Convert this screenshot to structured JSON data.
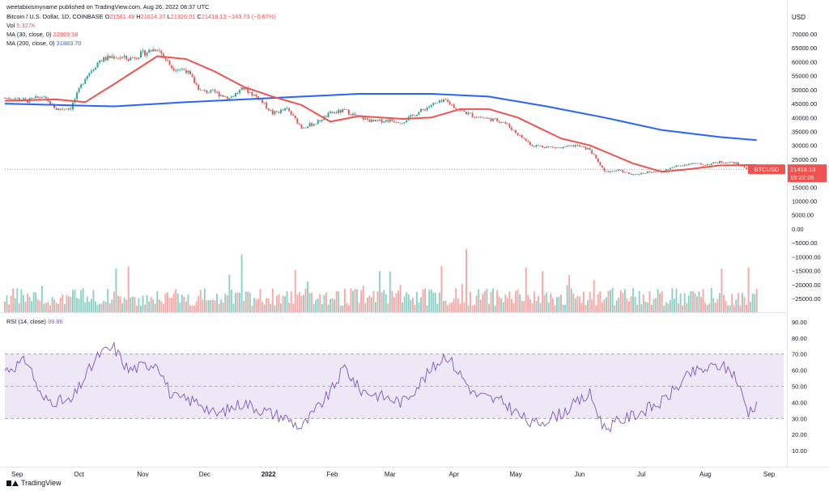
{
  "header": {
    "author_line": "weetabixismyname published on TradingView.com, Aug 26, 2022 08:37 UTC",
    "title": "Bitcoin / U.S. Dollar, 1D, COINBASE",
    "ohlc": {
      "O_label": "O",
      "O": "21561.49",
      "H_label": "H",
      "H": "21614.37",
      "L_label": "L",
      "L": "21326.01",
      "C_label": "C",
      "C": "21418.13",
      "change": "−143.73 (−0.67%)"
    },
    "vol_label": "Vol",
    "vol_value": "5.327K",
    "ma30_label": "MA (30, close, 0)",
    "ma30_value": "22969.58",
    "ma200_label": "MA (200, close, 0)",
    "ma200_value": "31883.70",
    "rsi_label": "RSI (14, close)",
    "rsi_value": "39.86"
  },
  "axis_unit": "USD",
  "price_axis_ticks": [
    "70000.00",
    "65000.00",
    "60000.00",
    "55000.00",
    "50000.00",
    "45000.00",
    "40000.00",
    "35000.00",
    "30000.00",
    "25000.00",
    "20000.00",
    "15000.00",
    "10000.00",
    "5000.00",
    "0.00",
    "−5000.00",
    "−10000.00",
    "−15000.00",
    "−20000.00",
    "−25000.00"
  ],
  "rsi_axis_ticks": [
    "90.00",
    "80.00",
    "70.00",
    "60.00",
    "50.00",
    "40.00",
    "30.00",
    "20.00",
    "10.00"
  ],
  "x_axis_labels": [
    "Sep",
    "Oct",
    "Nov",
    "Dec",
    "2022",
    "Feb",
    "Mar",
    "Apr",
    "May",
    "Jun",
    "Jul",
    "Aug",
    "Sep"
  ],
  "price_tag": {
    "symbol": "BTCUSD",
    "price": "21418.13",
    "countdown": "15:22:28"
  },
  "footer": {
    "brand": "TradingView"
  },
  "colors": {
    "up": "#26a69a",
    "down": "#ef5350",
    "up_vol": "#8ed1c6",
    "down_vol": "#f7a9a7",
    "ma30": "#ef5350",
    "ma200": "#2962ff",
    "rsi": "#7e57c2",
    "rsi_band": "#ede7f6"
  },
  "chart_data": {
    "type": "candlestick",
    "x_start": "2021-08-26",
    "x_end": "2022-08-26",
    "price_ylim": [
      -25000,
      70000
    ],
    "ohlc_weekly_close": [
      [
        "2021-08-30",
        47000
      ],
      [
        "2021-09-06",
        46000
      ],
      [
        "2021-09-13",
        47500
      ],
      [
        "2021-09-20",
        43000
      ],
      [
        "2021-09-27",
        43500
      ],
      [
        "2021-10-04",
        54500
      ],
      [
        "2021-10-11",
        60500
      ],
      [
        "2021-10-18",
        62000
      ],
      [
        "2021-10-25",
        61000
      ],
      [
        "2021-11-01",
        63000
      ],
      [
        "2021-11-08",
        65000
      ],
      [
        "2021-11-15",
        58000
      ],
      [
        "2021-11-22",
        57000
      ],
      [
        "2021-11-29",
        49500
      ],
      [
        "2021-12-06",
        49000
      ],
      [
        "2021-12-13",
        47000
      ],
      [
        "2021-12-20",
        50500
      ],
      [
        "2021-12-27",
        47000
      ],
      [
        "2022-01-03",
        41500
      ],
      [
        "2022-01-10",
        43000
      ],
      [
        "2022-01-17",
        36500
      ],
      [
        "2022-01-24",
        38000
      ],
      [
        "2022-01-31",
        41500
      ],
      [
        "2022-02-07",
        42500
      ],
      [
        "2022-02-14",
        40000
      ],
      [
        "2022-02-21",
        38500
      ],
      [
        "2022-02-28",
        39000
      ],
      [
        "2022-03-07",
        38500
      ],
      [
        "2022-03-14",
        41500
      ],
      [
        "2022-03-21",
        44500
      ],
      [
        "2022-03-28",
        46000
      ],
      [
        "2022-04-04",
        42500
      ],
      [
        "2022-04-11",
        40500
      ],
      [
        "2022-04-18",
        39500
      ],
      [
        "2022-04-25",
        38500
      ],
      [
        "2022-05-02",
        34000
      ],
      [
        "2022-05-09",
        30000
      ],
      [
        "2022-05-16",
        29500
      ],
      [
        "2022-05-23",
        29000
      ],
      [
        "2022-05-30",
        30000
      ],
      [
        "2022-06-06",
        28500
      ],
      [
        "2022-06-13",
        20500
      ],
      [
        "2022-06-20",
        21000
      ],
      [
        "2022-06-27",
        19300
      ],
      [
        "2022-07-04",
        20500
      ],
      [
        "2022-07-11",
        20800
      ],
      [
        "2022-07-18",
        22500
      ],
      [
        "2022-07-25",
        23500
      ],
      [
        "2022-08-01",
        23000
      ],
      [
        "2022-08-08",
        24000
      ],
      [
        "2022-08-15",
        23800
      ],
      [
        "2022-08-22",
        21418
      ]
    ],
    "ma30": [
      [
        "2021-08-26",
        46000
      ],
      [
        "2021-09-20",
        46500
      ],
      [
        "2021-10-04",
        45500
      ],
      [
        "2021-10-18",
        52000
      ],
      [
        "2021-11-08",
        62000
      ],
      [
        "2021-11-22",
        61000
      ],
      [
        "2021-12-06",
        56500
      ],
      [
        "2021-12-20",
        51000
      ],
      [
        "2022-01-03",
        47500
      ],
      [
        "2022-01-17",
        44500
      ],
      [
        "2022-01-31",
        38500
      ],
      [
        "2022-02-14",
        40500
      ],
      [
        "2022-03-07",
        39500
      ],
      [
        "2022-03-21",
        40000
      ],
      [
        "2022-04-04",
        43000
      ],
      [
        "2022-04-18",
        43000
      ],
      [
        "2022-05-02",
        40000
      ],
      [
        "2022-05-23",
        32500
      ],
      [
        "2022-06-06",
        30000
      ],
      [
        "2022-06-27",
        23500
      ],
      [
        "2022-07-11",
        20500
      ],
      [
        "2022-07-25",
        21500
      ],
      [
        "2022-08-08",
        22800
      ],
      [
        "2022-08-26",
        22970
      ]
    ],
    "ma200": [
      [
        "2021-08-26",
        45000
      ],
      [
        "2021-09-20",
        44500
      ],
      [
        "2021-10-18",
        44000
      ],
      [
        "2021-11-22",
        45500
      ],
      [
        "2021-12-20",
        46500
      ],
      [
        "2022-01-17",
        47500
      ],
      [
        "2022-02-14",
        48500
      ],
      [
        "2022-03-21",
        48500
      ],
      [
        "2022-04-18",
        47500
      ],
      [
        "2022-05-16",
        44000
      ],
      [
        "2022-06-13",
        40000
      ],
      [
        "2022-07-11",
        35500
      ],
      [
        "2022-08-08",
        33000
      ],
      [
        "2022-08-26",
        31884
      ]
    ],
    "rsi_ylim": [
      0,
      100
    ],
    "rsi_bands": [
      30,
      70
    ],
    "rsi": [
      [
        "2021-08-26",
        60
      ],
      [
        "2021-09-06",
        66
      ],
      [
        "2021-09-13",
        42
      ],
      [
        "2021-09-27",
        40
      ],
      [
        "2021-10-04",
        56
      ],
      [
        "2021-10-11",
        70
      ],
      [
        "2021-10-18",
        74
      ],
      [
        "2021-10-25",
        60
      ],
      [
        "2021-11-08",
        65
      ],
      [
        "2021-11-15",
        43
      ],
      [
        "2021-11-29",
        40
      ],
      [
        "2021-12-06",
        32
      ],
      [
        "2021-12-20",
        40
      ],
      [
        "2021-12-27",
        36
      ],
      [
        "2022-01-10",
        30
      ],
      [
        "2022-01-17",
        24
      ],
      [
        "2022-01-31",
        46
      ],
      [
        "2022-02-07",
        62
      ],
      [
        "2022-02-14",
        48
      ],
      [
        "2022-03-07",
        40
      ],
      [
        "2022-03-21",
        60
      ],
      [
        "2022-03-28",
        70
      ],
      [
        "2022-04-11",
        45
      ],
      [
        "2022-04-25",
        40
      ],
      [
        "2022-05-09",
        26
      ],
      [
        "2022-05-23",
        33
      ],
      [
        "2022-06-06",
        45
      ],
      [
        "2022-06-13",
        24
      ],
      [
        "2022-06-27",
        32
      ],
      [
        "2022-07-11",
        40
      ],
      [
        "2022-07-25",
        58
      ],
      [
        "2022-08-08",
        63
      ],
      [
        "2022-08-15",
        58
      ],
      [
        "2022-08-22",
        34
      ],
      [
        "2022-08-26",
        39.86
      ]
    ],
    "grid": true
  }
}
